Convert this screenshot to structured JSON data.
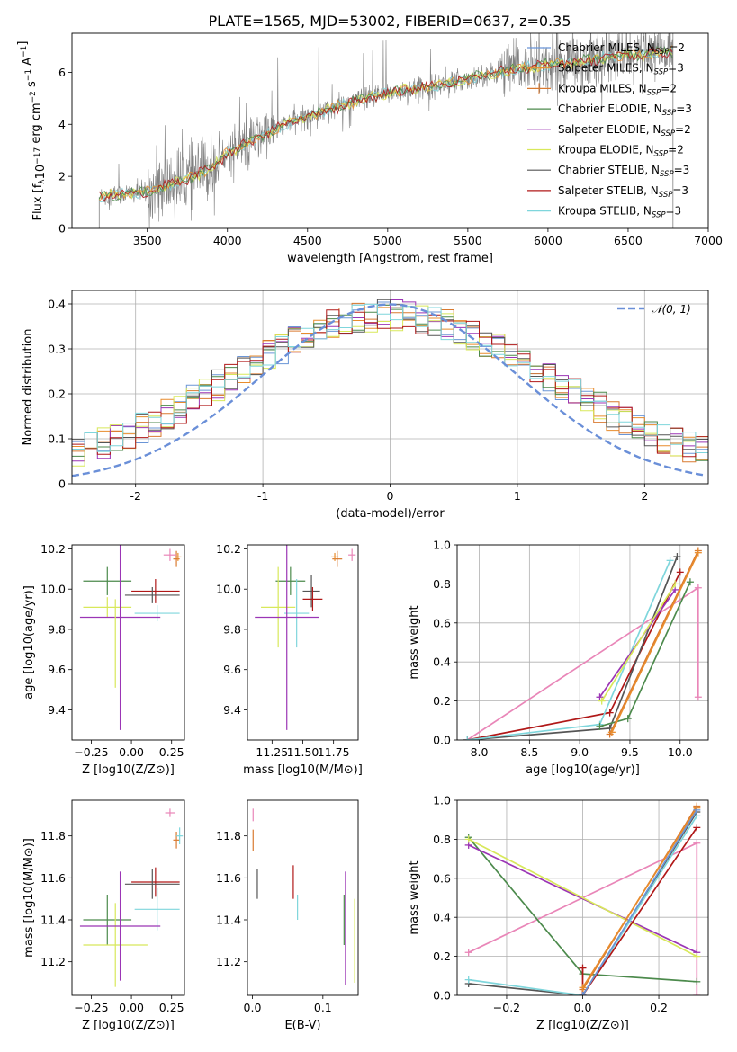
{
  "figure_title": "PLATE=1565, MJD=53002, FIBERID=0637, z=0.35",
  "colors": {
    "Chabrier MILES": "#6a95d6",
    "Salpeter MILES": "#e88c2d",
    "Kroupa MILES": "#d97a30",
    "Chabrier ELODIE": "#4c8a4c",
    "Salpeter ELODIE": "#9b35b5",
    "Kroupa ELODIE": "#d8e85a",
    "Chabrier STELIB": "#555555",
    "Salpeter STELIB": "#b01818",
    "Kroupa STELIB": "#7fd6dc",
    "pink": "#e986b8",
    "normal": "#6a8fd8",
    "spectrum": "#808080"
  },
  "chart_data": [
    {
      "id": "spectrum",
      "type": "line",
      "xlabel": "wavelength [Angstrom, rest frame]",
      "ylabel": "Flux [f_λ10^-17 erg cm^-2 s^-1 A^-1]",
      "xlim": [
        3030,
        7000
      ],
      "ylim": [
        0,
        7.5
      ],
      "xticks": [
        3500,
        4000,
        4500,
        5000,
        5500,
        6000,
        6500,
        7000
      ],
      "yticks": [
        0,
        2,
        4,
        6
      ],
      "continuum": {
        "x": [
          3200,
          3300,
          3500,
          3700,
          3900,
          4000,
          4200,
          4400,
          4600,
          4800,
          5000,
          5200,
          5400,
          5600,
          5800,
          6000,
          6200,
          6400,
          6600,
          6800
        ],
        "y": [
          1.2,
          1.3,
          1.4,
          1.8,
          2.3,
          2.9,
          3.5,
          4.1,
          4.5,
          4.9,
          5.2,
          5.4,
          5.6,
          5.9,
          6.1,
          6.3,
          6.4,
          6.6,
          6.7,
          6.8
        ]
      },
      "legend": [
        {
          "text": "Chabrier MILES, N",
          "sub": "SSP",
          "tail": "=2"
        },
        {
          "text": "Salpeter MILES, N",
          "sub": "SSP",
          "tail": "=3"
        },
        {
          "text": "Kroupa MILES, N",
          "sub": "SSP",
          "tail": "=2"
        },
        {
          "text": "Chabrier ELODIE, N",
          "sub": "SSP",
          "tail": "=3"
        },
        {
          "text": "Salpeter ELODIE, N",
          "sub": "SSP",
          "tail": "=2"
        },
        {
          "text": "Kroupa ELODIE, N",
          "sub": "SSP",
          "tail": "=2"
        },
        {
          "text": "Chabrier STELIB, N",
          "sub": "SSP",
          "tail": "=3"
        },
        {
          "text": "Salpeter STELIB, N",
          "sub": "SSP",
          "tail": "=3"
        },
        {
          "text": "Kroupa STELIB, N",
          "sub": "SSP",
          "tail": "=3"
        }
      ]
    },
    {
      "id": "residuals",
      "type": "bar",
      "xlabel": "(data-model)/error",
      "ylabel": "Normed distribution",
      "xlim": [
        -2.5,
        2.5
      ],
      "ylim": [
        0,
        0.43
      ],
      "xticks": [
        -2,
        -1,
        0,
        1,
        2
      ],
      "yticks": [
        0.0,
        0.1,
        0.2,
        0.3,
        0.4
      ],
      "grid": true,
      "bin_width": 0.1,
      "normal_legend": "𝒩(0, 1)"
    },
    {
      "id": "Z-age",
      "type": "scatter",
      "xlabel": "Z [log10(Z/Z⊙)]",
      "ylabel": "age  [log10(age/yr)]",
      "xlim": [
        -0.37,
        0.33
      ],
      "ylim": [
        9.25,
        10.22
      ],
      "xticks": [
        -0.25,
        0.0,
        0.25
      ],
      "xticklabels": [
        "−0.25",
        "0.00",
        "0.25"
      ],
      "yticks": [
        9.4,
        9.6,
        9.8,
        10.0,
        10.2
      ],
      "yticklabels": [
        "9.4",
        "9.6",
        "9.8",
        "10.0",
        "10.2"
      ],
      "points": [
        {
          "c": "Chabrier ELODIE",
          "x": -0.15,
          "y": 10.04,
          "xe": 0.15,
          "ye": 0.07
        },
        {
          "c": "Salpeter STELIB",
          "x": 0.15,
          "y": 9.99,
          "xe": 0.15,
          "ye": 0.06
        },
        {
          "c": "Chabrier STELIB",
          "x": 0.13,
          "y": 9.97,
          "xe": 0.17,
          "ye": 0.04
        },
        {
          "c": "Kroupa ELODIE",
          "x": -0.15,
          "y": 9.91,
          "xe": 0.15,
          "ye": 0.05
        },
        {
          "c": "Kroupa STELIB",
          "x": 0.16,
          "y": 9.88,
          "xe": 0.14,
          "ye": 0.04
        },
        {
          "c": "Salpeter ELODIE",
          "x": -0.07,
          "y": 9.86,
          "xe": 0.25,
          "ye": 0.56
        },
        {
          "c": "Kroupa MILES",
          "x": 0.28,
          "y": 10.15,
          "xe": 0.02,
          "ye": 0.04
        },
        {
          "c": "pink",
          "x": 0.24,
          "y": 10.17,
          "xe": 0.04,
          "ye": 0.03
        },
        {
          "c": "Salpeter MILES",
          "x": 0.29,
          "y": 10.16,
          "xe": 0.02,
          "ye": 0.02
        },
        {
          "c": "Kroupa ELODIE",
          "x": -0.1,
          "y": 9.73,
          "xe": 0.0,
          "ye": 0.22
        }
      ]
    },
    {
      "id": "mass-age",
      "type": "scatter",
      "xlabel": "mass [log10(M/M⊙)]",
      "ylabel": "",
      "xlim": [
        11.05,
        11.95
      ],
      "ylim": [
        9.25,
        10.22
      ],
      "xticks": [
        11.25,
        11.5,
        11.75
      ],
      "xticklabels": [
        "11.25",
        "11.50",
        "11.75"
      ],
      "yticks": [
        9.4,
        9.6,
        9.8,
        10.0,
        10.2
      ],
      "yticklabels": [
        "9.4",
        "9.6",
        "9.8",
        "10.0",
        "10.2"
      ],
      "points": [
        {
          "c": "Chabrier ELODIE",
          "x": 11.4,
          "y": 10.04,
          "xe": 0.12,
          "ye": 0.07
        },
        {
          "c": "Chabrier STELIB",
          "x": 11.57,
          "y": 9.99,
          "xe": 0.07,
          "ye": 0.08
        },
        {
          "c": "Salpeter STELIB",
          "x": 11.58,
          "y": 9.95,
          "xe": 0.08,
          "ye": 0.06
        },
        {
          "c": "Kroupa ELODIE",
          "x": 11.3,
          "y": 9.91,
          "xe": 0.14,
          "ye": 0.2
        },
        {
          "c": "Kroupa STELIB",
          "x": 11.45,
          "y": 9.88,
          "xe": 0.1,
          "ye": 0.17
        },
        {
          "c": "Salpeter ELODIE",
          "x": 11.37,
          "y": 9.86,
          "xe": 0.26,
          "ye": 0.56
        },
        {
          "c": "Kroupa MILES",
          "x": 11.78,
          "y": 10.15,
          "xe": 0.04,
          "ye": 0.04
        },
        {
          "c": "pink",
          "x": 11.9,
          "y": 10.17,
          "xe": 0.03,
          "ye": 0.03
        },
        {
          "c": "Salpeter MILES",
          "x": 11.76,
          "y": 10.16,
          "xe": 0.03,
          "ye": 0.02
        }
      ]
    },
    {
      "id": "weight-age",
      "type": "line",
      "xlabel": "age  [log10(age/yr)]",
      "ylabel": "mass weight",
      "xlim": [
        7.78,
        10.28
      ],
      "ylim": [
        0,
        1
      ],
      "xticks": [
        8.0,
        8.5,
        9.0,
        9.5,
        10.0
      ],
      "xticklabels": [
        "8.0",
        "8.5",
        "9.0",
        "9.5",
        "10.0"
      ],
      "yticks": [
        0,
        0.2,
        0.4,
        0.6,
        0.8,
        1.0
      ],
      "yticklabels": [
        "0.0",
        "0.2",
        "0.4",
        "0.6",
        "0.8",
        "1.0"
      ],
      "grid": true,
      "series": [
        {
          "c": "pink",
          "x": [
            7.88,
            10.18,
            10.18
          ],
          "y": [
            0.0,
            0.78,
            0.22
          ]
        },
        {
          "c": "Salpeter STELIB",
          "x": [
            7.88,
            9.3,
            10.0
          ],
          "y": [
            0.0,
            0.14,
            0.86
          ]
        },
        {
          "c": "Chabrier STELIB",
          "x": [
            7.88,
            9.3,
            9.97
          ],
          "y": [
            0.0,
            0.06,
            0.94
          ]
        },
        {
          "c": "Kroupa STELIB",
          "x": [
            7.88,
            9.2,
            9.9
          ],
          "y": [
            0.0,
            0.08,
            0.92
          ]
        },
        {
          "c": "Chabrier ELODIE",
          "x": [
            9.2,
            9.48,
            10.1
          ],
          "y": [
            0.07,
            0.11,
            0.81
          ]
        },
        {
          "c": "Salpeter ELODIE",
          "x": [
            9.2,
            9.95
          ],
          "y": [
            0.22,
            0.77
          ]
        },
        {
          "c": "Kroupa ELODIE",
          "x": [
            9.22,
            9.95
          ],
          "y": [
            0.2,
            0.8
          ]
        },
        {
          "c": "Kroupa MILES",
          "x": [
            9.3,
            10.18
          ],
          "y": [
            0.03,
            0.97
          ]
        },
        {
          "c": "Salpeter MILES",
          "x": [
            9.32,
            10.18
          ],
          "y": [
            0.04,
            0.96
          ]
        }
      ]
    },
    {
      "id": "Z-mass",
      "type": "scatter",
      "xlabel": "Z [log10(Z/Z⊙)]",
      "ylabel": "mass [log10(M/M⊙)]",
      "xlim": [
        -0.37,
        0.33
      ],
      "ylim": [
        11.04,
        11.97
      ],
      "xticks": [
        -0.25,
        0.0,
        0.25
      ],
      "xticklabels": [
        "−0.25",
        "0.00",
        "0.25"
      ],
      "yticks": [
        11.2,
        11.4,
        11.6,
        11.8
      ],
      "yticklabels": [
        "11.2",
        "11.4",
        "11.6",
        "11.8"
      ],
      "points": [
        {
          "c": "Chabrier ELODIE",
          "x": -0.15,
          "y": 11.4,
          "xe": 0.15,
          "ye": 0.12
        },
        {
          "c": "Salpeter STELIB",
          "x": 0.15,
          "y": 11.58,
          "xe": 0.15,
          "ye": 0.07
        },
        {
          "c": "Chabrier STELIB",
          "x": 0.13,
          "y": 11.57,
          "xe": 0.17,
          "ye": 0.07
        },
        {
          "c": "Kroupa ELODIE",
          "x": -0.1,
          "y": 11.28,
          "xe": 0.2,
          "ye": 0.2
        },
        {
          "c": "Kroupa STELIB",
          "x": 0.16,
          "y": 11.45,
          "xe": 0.14,
          "ye": 0.1
        },
        {
          "c": "Salpeter ELODIE",
          "x": -0.07,
          "y": 11.37,
          "xe": 0.25,
          "ye": 0.26
        },
        {
          "c": "Kroupa MILES",
          "x": 0.28,
          "y": 11.78,
          "xe": 0.02,
          "ye": 0.04
        },
        {
          "c": "pink",
          "x": 0.24,
          "y": 11.91,
          "xe": 0.03,
          "ye": 0.02
        },
        {
          "c": "Kroupa STELIB",
          "x": 0.3,
          "y": 11.8,
          "xe": 0.02,
          "ye": 0.04
        }
      ]
    },
    {
      "id": "ebv-mass",
      "type": "scatter",
      "xlabel": "E(B-V)",
      "ylabel": "",
      "xlim": [
        -0.007,
        0.15
      ],
      "ylim": [
        11.04,
        11.97
      ],
      "xticks": [
        0.0,
        0.1
      ],
      "xticklabels": [
        "0.0",
        "0.1"
      ],
      "yticks": [
        11.2,
        11.4,
        11.6,
        11.8
      ],
      "yticklabels": [
        "11.2",
        "11.4",
        "11.6",
        "11.8"
      ],
      "points": [
        {
          "c": "Kroupa MILES",
          "x": 0.001,
          "y": 11.78,
          "xe": 0,
          "ye": 0.05
        },
        {
          "c": "pink",
          "x": 0.001,
          "y": 11.9,
          "xe": 0,
          "ye": 0.03
        },
        {
          "c": "Chabrier STELIB",
          "x": 0.007,
          "y": 11.57,
          "xe": 0,
          "ye": 0.07
        },
        {
          "c": "Salpeter STELIB",
          "x": 0.058,
          "y": 11.58,
          "xe": 0,
          "ye": 0.08
        },
        {
          "c": "Kroupa STELIB",
          "x": 0.064,
          "y": 11.46,
          "xe": 0,
          "ye": 0.06
        },
        {
          "c": "Chabrier ELODIE",
          "x": 0.13,
          "y": 11.4,
          "xe": 0,
          "ye": 0.12
        },
        {
          "c": "Salpeter ELODIE",
          "x": 0.132,
          "y": 11.36,
          "xe": 0,
          "ye": 0.27
        },
        {
          "c": "Kroupa ELODIE",
          "x": 0.145,
          "y": 11.3,
          "xe": 0,
          "ye": 0.2
        }
      ]
    },
    {
      "id": "weight-Z",
      "type": "line",
      "xlabel": "Z [log10(Z/Z⊙)]",
      "ylabel": "mass weight",
      "xlim": [
        -0.33,
        0.33
      ],
      "ylim": [
        0,
        1
      ],
      "xticks": [
        -0.2,
        0.0,
        0.2
      ],
      "xticklabels": [
        "−0.2",
        "0.0",
        "0.2"
      ],
      "yticks": [
        0,
        0.2,
        0.4,
        0.6,
        0.8,
        1.0
      ],
      "yticklabels": [
        "0.0",
        "0.2",
        "0.4",
        "0.6",
        "0.8",
        "1.0"
      ],
      "grid": true,
      "series": [
        {
          "c": "pink",
          "x": [
            -0.3,
            0.3,
            0.3
          ],
          "y": [
            0.22,
            0.78,
            0.0
          ]
        },
        {
          "c": "Chabrier ELODIE",
          "x": [
            -0.3,
            0.0,
            0.3
          ],
          "y": [
            0.81,
            0.11,
            0.07
          ]
        },
        {
          "c": "Salpeter ELODIE",
          "x": [
            -0.3,
            0.3
          ],
          "y": [
            0.77,
            0.22
          ]
        },
        {
          "c": "Kroupa ELODIE",
          "x": [
            -0.3,
            0.3
          ],
          "y": [
            0.8,
            0.2
          ]
        },
        {
          "c": "Chabrier STELIB",
          "x": [
            -0.3,
            0.0,
            0.3
          ],
          "y": [
            0.06,
            0.0,
            0.94
          ]
        },
        {
          "c": "Kroupa STELIB",
          "x": [
            -0.3,
            0.0,
            0.3
          ],
          "y": [
            0.08,
            0.0,
            0.92
          ]
        },
        {
          "c": "Salpeter STELIB",
          "x": [
            0.0,
            0.0,
            0.3
          ],
          "y": [
            0.14,
            0.0,
            0.86
          ]
        },
        {
          "c": "Kroupa MILES",
          "x": [
            0.0,
            0.3
          ],
          "y": [
            0.03,
            0.97
          ]
        },
        {
          "c": "Salpeter MILES",
          "x": [
            0.0,
            0.3
          ],
          "y": [
            0.04,
            0.96
          ]
        },
        {
          "c": "Chabrier MILES",
          "x": [
            0.0,
            0.3
          ],
          "y": [
            0.0,
            0.95
          ]
        }
      ]
    }
  ]
}
